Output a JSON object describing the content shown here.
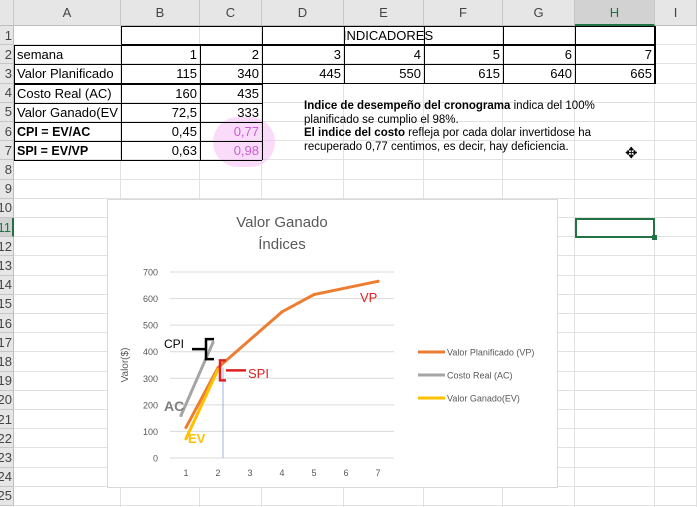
{
  "columns": [
    "A",
    "B",
    "C",
    "D",
    "E",
    "F",
    "G",
    "H",
    "I"
  ],
  "rows": [
    "1",
    "2",
    "3",
    "4",
    "5",
    "6",
    "7",
    "8",
    "9",
    "10",
    "11",
    "12",
    "13",
    "14",
    "15",
    "16",
    "17",
    "18",
    "19",
    "20",
    "21",
    "22",
    "23",
    "24",
    "25"
  ],
  "table": {
    "header": "INDICADORES",
    "semana_label": "semana",
    "semanas": [
      "1",
      "2",
      "3",
      "4",
      "5",
      "6",
      "7"
    ],
    "vp_label": "Valor Planificado",
    "vp": [
      "115",
      "340",
      "445",
      "550",
      "615",
      "640",
      "665"
    ],
    "ac_label": "Costo Real (AC)",
    "ac": [
      "160",
      "435"
    ],
    "ev_label": "Valor Ganado(EV",
    "ev": [
      "72,5",
      "333"
    ],
    "cpi_label": "CPI = EV/AC",
    "cpi": [
      "0,45",
      "0,77"
    ],
    "spi_label": "SPI = EV/VP",
    "spi": [
      "0,63",
      "0,98"
    ]
  },
  "note": {
    "line1_bold": "Indice de desempeño del cronograma",
    "line1_rest": " indica del 100%",
    "line2": "planificado se cumplio el 98%.",
    "line3_bold": "El indice del costo",
    "line3_rest": " refleja por cada dolar invertidose ha",
    "line4": "recuperado  0,77 centimos, es decir, hay deficiencia."
  },
  "cursor_glyph": "✥",
  "chart_data": {
    "type": "line",
    "title": "Valor Ganado",
    "subtitle": "Índices",
    "ylabel": "Valor($)",
    "xlabel": "",
    "ylim": [
      0,
      700
    ],
    "yticks": [
      0,
      100,
      200,
      300,
      400,
      500,
      600,
      700
    ],
    "x": [
      1,
      2,
      3,
      4,
      5,
      6,
      7
    ],
    "series": [
      {
        "name": "Valor Planificado (VP)",
        "color": "#ed7d31",
        "x": [
          1,
          2,
          3,
          4,
          5,
          6,
          7
        ],
        "values": [
          115,
          340,
          445,
          550,
          615,
          640,
          665
        ]
      },
      {
        "name": "Costo Real (AC)",
        "color": "#a5a5a5",
        "x": [
          1,
          2
        ],
        "values": [
          160,
          435
        ]
      },
      {
        "name": "Valor Ganado(EV)",
        "color": "#ffc000",
        "x": [
          1,
          2
        ],
        "values": [
          72.5,
          333
        ]
      }
    ],
    "annotations": [
      {
        "text": "VP",
        "color": "#e02020"
      },
      {
        "text": "CPI",
        "color": "#000000"
      },
      {
        "text": "SPI",
        "color": "#e02020"
      },
      {
        "text": "AC",
        "color": "#7f7f7f"
      },
      {
        "text": "EV",
        "color": "#ffc000"
      }
    ],
    "legend": "right"
  }
}
